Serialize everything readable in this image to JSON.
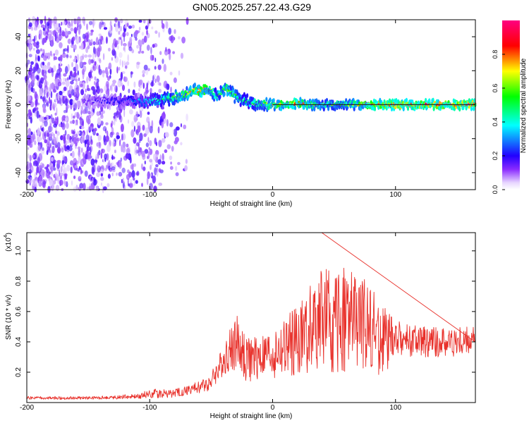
{
  "title": "GN05.2025.257.22.43.G29",
  "chart_data": [
    {
      "type": "heatmap",
      "xlabel": "Height of straight line (km)",
      "ylabel": "Frequency (Hz)",
      "xlim": [
        -200,
        165
      ],
      "ylim": [
        -50,
        50
      ],
      "x_ticks": [
        -200,
        -100,
        0,
        100
      ],
      "x_tick_labels": [
        "-200",
        "-100",
        "0",
        "100"
      ],
      "y_ticks": [
        -40,
        -20,
        0,
        20,
        40
      ],
      "y_tick_labels": [
        "-40",
        "-20",
        "0",
        "20",
        "40"
      ],
      "colorbar": {
        "label": "Normalized spectral amplitude",
        "range": [
          0,
          1
        ],
        "ticks": [
          0.0,
          0.2,
          0.4,
          0.6,
          0.8
        ],
        "tick_labels": [
          "0.0",
          "0.2",
          "0.4",
          "0.6",
          "0.8"
        ],
        "colormap": [
          "#ffffff",
          "#5500ff",
          "#0000ff",
          "#00ffff",
          "#00ff00",
          "#ffff00",
          "#ff0000",
          "#ff0080"
        ]
      },
      "ridge": {
        "x": [
          -155,
          -140,
          -120,
          -110,
          -100,
          -90,
          -80,
          -72,
          -64,
          -56,
          -50,
          -46,
          -42,
          -38,
          -32,
          -26,
          -20,
          -10,
          0,
          10,
          20,
          30,
          40,
          50,
          60,
          80,
          100,
          120,
          140,
          165
        ],
        "freq": [
          2,
          2,
          2,
          2,
          2,
          3,
          4,
          6,
          8,
          9,
          8,
          5,
          7,
          10,
          6,
          3,
          2,
          0,
          0,
          0,
          1,
          0,
          0,
          0,
          0,
          0,
          0,
          0,
          0,
          0
        ],
        "amplitude": [
          0.15,
          0.2,
          0.25,
          0.3,
          0.4,
          0.5,
          0.6,
          0.7,
          0.75,
          0.8,
          0.6,
          0.5,
          0.6,
          0.7,
          0.6,
          0.5,
          0.5,
          0.6,
          0.7,
          0.8,
          0.9,
          0.7,
          0.6,
          0.6,
          0.6,
          0.9,
          0.95,
          0.95,
          0.95,
          1.0
        ]
      }
    },
    {
      "type": "line",
      "xlabel": "Height of straight line (km)",
      "ylabel": "SNR (10 * v/v)",
      "y_scale_label": "(x10",
      "y_scale_exp": "4",
      "y_scale_close": ")",
      "xlim": [
        -200,
        165
      ],
      "ylim": [
        0,
        1.12
      ],
      "x_ticks": [
        -200,
        -100,
        0,
        100
      ],
      "x_tick_labels": [
        "-200",
        "-100",
        "0",
        "100"
      ],
      "y_ticks": [
        0.2,
        0.4,
        0.6,
        0.8,
        1.0
      ],
      "y_tick_labels": [
        "0.2",
        "0.4",
        "0.6",
        "0.8",
        "1.0"
      ],
      "series": [
        {
          "color": "#e8302a",
          "envelope_x": [
            -200,
            -150,
            -110,
            -100,
            -80,
            -60,
            -50,
            -40,
            -30,
            -20,
            -10,
            0,
            10,
            20,
            30,
            40,
            50,
            60,
            70,
            80,
            90,
            100,
            120,
            140,
            165
          ],
          "envelope_y": [
            0.03,
            0.03,
            0.04,
            0.06,
            0.06,
            0.1,
            0.14,
            0.28,
            0.4,
            0.28,
            0.3,
            0.32,
            0.35,
            0.4,
            0.48,
            0.55,
            0.5,
            0.55,
            0.52,
            0.5,
            0.42,
            0.42,
            0.4,
            0.4,
            0.4
          ],
          "envelope_spread": [
            0.01,
            0.01,
            0.015,
            0.03,
            0.03,
            0.04,
            0.06,
            0.1,
            0.2,
            0.15,
            0.15,
            0.16,
            0.2,
            0.25,
            0.28,
            0.35,
            0.35,
            0.35,
            0.32,
            0.3,
            0.25,
            0.12,
            0.1,
            0.1,
            0.1
          ]
        }
      ]
    }
  ]
}
